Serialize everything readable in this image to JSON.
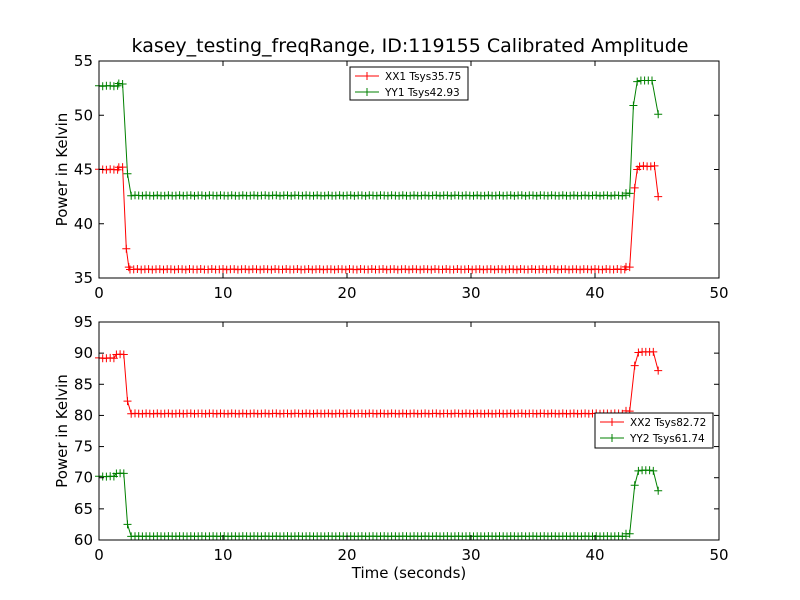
{
  "chart_data": [
    {
      "type": "line",
      "title": "kasey_testing_freqRange, ID:119155 Calibrated Amplitude",
      "xlabel": "",
      "ylabel": "Power in Kelvin",
      "xlim": [
        0,
        50
      ],
      "ylim": [
        35,
        55
      ],
      "xticks": [
        0,
        10,
        20,
        30,
        40,
        50
      ],
      "yticks": [
        35,
        40,
        45,
        50,
        55
      ],
      "legend": "upper-center",
      "series": [
        {
          "name": "XX1 Tsys35.75",
          "color": "#ff0000",
          "segments": [
            {
              "start": 0.0,
              "end": 1.6,
              "value": 45.0
            },
            {
              "start": 1.6,
              "end": 2.0,
              "value": 45.2
            },
            {
              "start": 2.5,
              "end": 42.5,
              "value": 35.8
            },
            {
              "start": 42.5,
              "end": 43.0,
              "value": 36.0
            },
            {
              "start": 43.6,
              "end": 45.0,
              "value": 45.3
            }
          ],
          "points": [
            [
              2.2,
              37.7
            ],
            [
              2.4,
              36.0
            ],
            [
              43.2,
              43.3
            ],
            [
              43.4,
              45.0
            ],
            [
              45.1,
              42.5
            ]
          ]
        },
        {
          "name": "YY1 Tsys42.93",
          "color": "#008000",
          "segments": [
            {
              "start": 0.0,
              "end": 1.6,
              "value": 52.7
            },
            {
              "start": 1.6,
              "end": 2.0,
              "value": 52.9
            },
            {
              "start": 2.6,
              "end": 42.5,
              "value": 42.6
            },
            {
              "start": 42.5,
              "end": 43.0,
              "value": 42.8
            }
          ],
          "points": [
            [
              2.3,
              44.6
            ],
            [
              43.1,
              50.9
            ],
            [
              43.4,
              53.1
            ],
            [
              43.7,
              53.2
            ],
            [
              44.0,
              53.2
            ],
            [
              44.3,
              53.2
            ],
            [
              44.6,
              53.2
            ],
            [
              45.1,
              50.1
            ]
          ]
        }
      ]
    },
    {
      "type": "line",
      "title": "",
      "xlabel": "Time (seconds)",
      "ylabel": "Power in Kelvin",
      "xlim": [
        0,
        50
      ],
      "ylim": [
        60,
        95
      ],
      "xticks": [
        0,
        10,
        20,
        30,
        40,
        50
      ],
      "yticks": [
        60,
        65,
        70,
        75,
        80,
        85,
        90,
        95
      ],
      "legend": "center-right",
      "series": [
        {
          "name": "XX2 Tsys82.72",
          "color": "#ff0000",
          "segments": [
            {
              "start": 0.0,
              "end": 1.4,
              "value": 89.2
            },
            {
              "start": 1.4,
              "end": 2.0,
              "value": 89.8
            },
            {
              "start": 2.6,
              "end": 42.5,
              "value": 80.3
            },
            {
              "start": 42.5,
              "end": 43.0,
              "value": 80.7
            }
          ],
          "points": [
            [
              2.3,
              82.3
            ],
            [
              43.2,
              88.0
            ],
            [
              43.5,
              90.1
            ],
            [
              43.8,
              90.2
            ],
            [
              44.1,
              90.2
            ],
            [
              44.4,
              90.2
            ],
            [
              44.7,
              90.2
            ],
            [
              45.1,
              87.2
            ]
          ]
        },
        {
          "name": "YY2 Tsys61.74",
          "color": "#008000",
          "segments": [
            {
              "start": 0.0,
              "end": 1.4,
              "value": 70.2
            },
            {
              "start": 1.4,
              "end": 2.0,
              "value": 70.7
            },
            {
              "start": 2.6,
              "end": 42.5,
              "value": 60.6
            },
            {
              "start": 42.5,
              "end": 43.0,
              "value": 61.0
            }
          ],
          "points": [
            [
              2.3,
              62.5
            ],
            [
              43.2,
              68.8
            ],
            [
              43.5,
              71.1
            ],
            [
              43.8,
              71.2
            ],
            [
              44.1,
              71.2
            ],
            [
              44.4,
              71.2
            ],
            [
              44.7,
              71.1
            ],
            [
              45.1,
              67.9
            ]
          ]
        }
      ]
    }
  ]
}
